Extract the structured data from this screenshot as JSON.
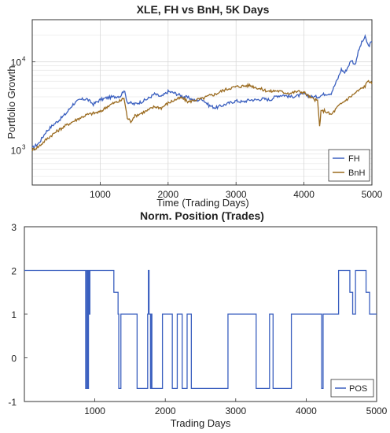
{
  "chart_data": [
    {
      "type": "line",
      "title": "XLE, FH vs BnH, 5K Days",
      "xlabel": "Time (Trading Days)",
      "ylabel": "Portfolio Growth",
      "xlim": [
        0,
        5000
      ],
      "ylim": [
        400,
        30000
      ],
      "yscale": "log",
      "grid": true,
      "legend": "bottom-right",
      "x_ticks": [
        "1000",
        "2000",
        "3000",
        "4000",
        "5000"
      ],
      "y_ticks": [
        {
          "base": "10",
          "exp": "3",
          "value": 1000
        },
        {
          "base": "10",
          "exp": "4",
          "value": 10000
        }
      ],
      "series": [
        {
          "name": "FH",
          "color": "#3a5fbf",
          "x": [
            0,
            100,
            200,
            300,
            400,
            500,
            600,
            700,
            800,
            900,
            1000,
            1100,
            1200,
            1300,
            1350,
            1400,
            1500,
            1600,
            1700,
            1800,
            1900,
            2000,
            2100,
            2200,
            2300,
            2400,
            2500,
            2600,
            2700,
            2800,
            2900,
            3000,
            3100,
            3200,
            3300,
            3400,
            3500,
            3600,
            3700,
            3800,
            3900,
            4000,
            4100,
            4200,
            4300,
            4400,
            4500,
            4550,
            4600,
            4700,
            4750,
            4800,
            4850,
            4900,
            4950,
            5000
          ],
          "y": [
            1050,
            1200,
            1600,
            1900,
            2200,
            2600,
            3300,
            3700,
            3800,
            3300,
            3700,
            3900,
            4000,
            4100,
            4800,
            3500,
            3300,
            3500,
            3800,
            4300,
            4000,
            4600,
            4400,
            4100,
            3900,
            3600,
            3800,
            3200,
            3000,
            3200,
            3400,
            3600,
            3500,
            3700,
            3700,
            3800,
            3700,
            4100,
            4200,
            4000,
            4100,
            4300,
            4000,
            4000,
            4300,
            4400,
            6500,
            8200,
            7500,
            10500,
            9200,
            13000,
            16500,
            19000,
            15000,
            17000
          ]
        },
        {
          "name": "BnH",
          "color": "#9a6a1e",
          "x": [
            0,
            100,
            200,
            300,
            400,
            500,
            600,
            700,
            800,
            900,
            1000,
            1100,
            1200,
            1300,
            1350,
            1400,
            1450,
            1500,
            1600,
            1700,
            1800,
            1900,
            2000,
            2100,
            2200,
            2300,
            2400,
            2500,
            2600,
            2700,
            2800,
            2900,
            3000,
            3100,
            3200,
            3300,
            3400,
            3500,
            3600,
            3700,
            3800,
            3900,
            4000,
            4100,
            4200,
            4230,
            4250,
            4300,
            4400,
            4500,
            4600,
            4700,
            4800,
            4900,
            4950,
            5000
          ],
          "y": [
            1000,
            1100,
            1300,
            1500,
            1700,
            1900,
            2100,
            2300,
            2500,
            2600,
            2700,
            3100,
            3400,
            3600,
            3900,
            2300,
            2100,
            2400,
            2600,
            2800,
            3100,
            3000,
            3400,
            3700,
            3900,
            3500,
            3700,
            3800,
            4100,
            4300,
            4700,
            5000,
            5200,
            5300,
            5400,
            5100,
            4800,
            4600,
            4700,
            4500,
            4400,
            4600,
            4500,
            3900,
            3600,
            1850,
            2700,
            2800,
            2500,
            3100,
            3600,
            4100,
            4700,
            5300,
            6200,
            5600
          ]
        }
      ]
    },
    {
      "type": "line",
      "title": "Norm. Position (Trades)",
      "xlabel": "Trading Days",
      "ylabel": "",
      "xlim": [
        0,
        5000
      ],
      "ylim": [
        -1,
        3
      ],
      "grid": false,
      "legend": "bottom-right",
      "x_ticks": [
        "1000",
        "2000",
        "3000",
        "4000",
        "5000"
      ],
      "y_ticks": [
        "3",
        "2",
        "1",
        "0",
        "-1"
      ],
      "series": [
        {
          "name": "POS",
          "color": "#3a5fbf",
          "x": [
            0,
            870,
            870,
            885,
            885,
            900,
            900,
            910,
            910,
            920,
            920,
            930,
            930,
            1270,
            1270,
            1330,
            1330,
            1340,
            1340,
            1370,
            1370,
            1600,
            1600,
            1750,
            1750,
            1760,
            1760,
            1770,
            1770,
            1790,
            1790,
            1800,
            1800,
            1810,
            1810,
            1960,
            1960,
            2100,
            2100,
            2170,
            2170,
            2240,
            2240,
            2310,
            2310,
            2370,
            2370,
            2890,
            2890,
            3290,
            3290,
            3480,
            3480,
            3530,
            3530,
            3790,
            3790,
            4220,
            4220,
            4240,
            4240,
            4460,
            4460,
            4620,
            4620,
            4660,
            4660,
            4700,
            4700,
            4850,
            4850,
            4900,
            4900,
            5000
          ],
          "y": [
            2,
            2,
            -0.7,
            -0.7,
            2,
            2,
            -0.7,
            -0.7,
            2,
            2,
            1,
            1,
            2,
            2,
            1.5,
            1.5,
            1,
            1,
            -0.7,
            -0.7,
            1,
            1,
            -0.7,
            -0.7,
            1,
            1,
            2,
            2,
            1,
            1,
            -0.7,
            -0.7,
            1,
            1,
            -0.7,
            -0.7,
            1,
            1,
            -0.7,
            -0.7,
            1,
            1,
            -0.7,
            -0.7,
            1,
            1,
            -0.7,
            -0.7,
            1,
            1,
            -0.7,
            -0.7,
            1,
            1,
            -0.7,
            -0.7,
            1,
            1,
            -0.7,
            -0.7,
            1,
            1,
            2,
            2,
            1.5,
            1.5,
            1,
            1,
            2,
            2,
            1.5,
            1.5,
            1,
            1
          ]
        }
      ]
    }
  ]
}
